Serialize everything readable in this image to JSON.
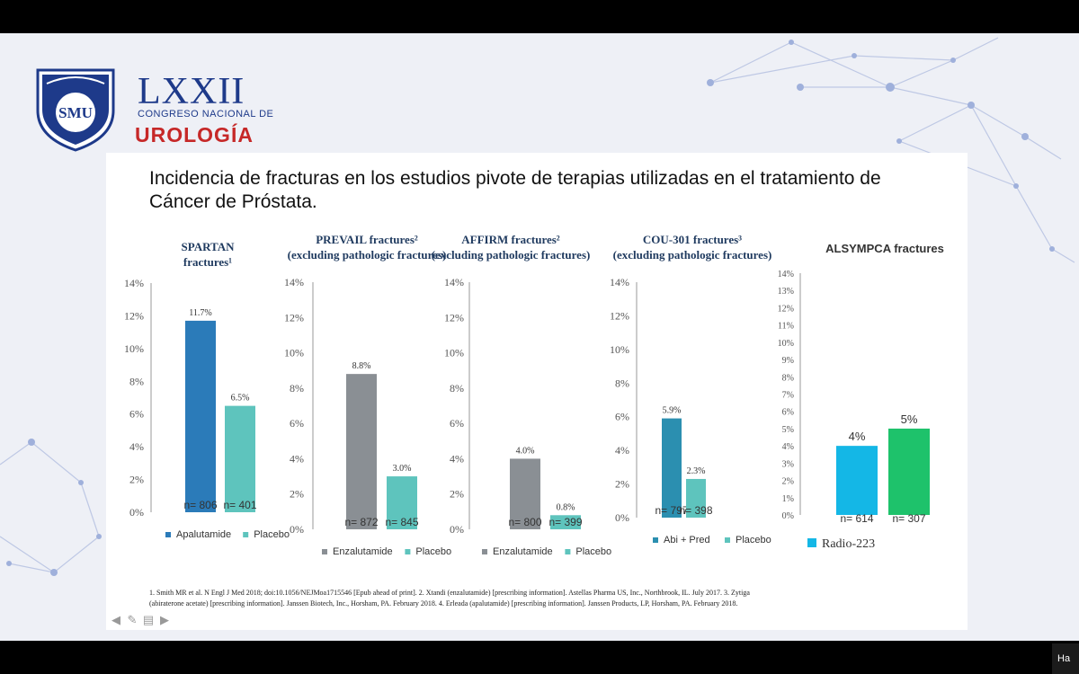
{
  "congress": {
    "logo_text": "SMU",
    "number": "LXXII",
    "subtitle": "CONGRESO NACIONAL DE",
    "specialty": "UROLOGÍA",
    "colors": {
      "blue": "#1e3a8a",
      "red": "#c62828"
    }
  },
  "slide": {
    "title": "Incidencia de fracturas en los estudios pivote de terapias utilizadas en el tratamiento de Cáncer de Próstata.",
    "footnote_line1": "1. Smith MR et al. N Engl J Med 2018; doi:10.1056/NEJMoa1715546 [Epub ahead of print]. 2. Xtandi (enzalutamide) [prescribing information]. Astellas Pharma US, Inc., Northbrook, IL. July 2017.      3. Zytiga",
    "footnote_line2": "(abiraterone acetate) [prescribing information]. Janssen Biotech, Inc., Horsham, PA. February 2018. 4. Erleada (apalutamide) [prescribing information]. Janssen Products, LP, Horsham, PA. February 2018."
  },
  "toolbar": {
    "icons": [
      "arrow-left-icon",
      "pen-icon",
      "notes-icon",
      "arrow-right-icon"
    ]
  },
  "corner_button_label": "Ha",
  "chart_data": [
    {
      "type": "bar",
      "title": "SPARTAN fractures¹",
      "categories": [
        "Apalutamide",
        "Placebo"
      ],
      "values": [
        11.7,
        6.5
      ],
      "value_labels": [
        "11.7%",
        "6.5%"
      ],
      "n_labels": [
        "n= 806",
        "n= 401"
      ],
      "ylim": [
        0,
        14
      ],
      "yticks": [
        "0%",
        "2%",
        "4%",
        "6%",
        "8%",
        "10%",
        "12%",
        "14%"
      ],
      "colors": [
        "#2b7bb9",
        "#5ec4bd"
      ],
      "legend": [
        "Apalutamide",
        "Placebo"
      ],
      "legend_position": "bottom"
    },
    {
      "type": "bar",
      "title": "PREVAIL fractures² (excluding pathologic fractures)",
      "categories": [
        "Enzalutamide",
        "Placebo"
      ],
      "values": [
        8.8,
        3.0
      ],
      "value_labels": [
        "8.8%",
        "3.0%"
      ],
      "n_labels": [
        "n= 872",
        "n= 845"
      ],
      "ylim": [
        0,
        14
      ],
      "yticks": [
        "0%",
        "2%",
        "4%",
        "6%",
        "8%",
        "10%",
        "12%",
        "14%"
      ],
      "colors": [
        "#8a8f94",
        "#5ec4bd"
      ],
      "legend": [
        "Enzalutamide",
        "Placebo"
      ],
      "legend_position": "bottom"
    },
    {
      "type": "bar",
      "title": "AFFIRM fractures² (excluding pathologic fractures)",
      "categories": [
        "Enzalutamide",
        "Placebo"
      ],
      "values": [
        4.0,
        0.8
      ],
      "value_labels": [
        "4.0%",
        "0.8%"
      ],
      "n_labels": [
        "n= 800",
        "n= 399"
      ],
      "ylim": [
        0,
        14
      ],
      "yticks": [
        "0%",
        "2%",
        "4%",
        "6%",
        "8%",
        "10%",
        "12%",
        "14%"
      ],
      "colors": [
        "#8a8f94",
        "#5ec4bd"
      ],
      "legend": [
        "Enzalutamide",
        "Placebo"
      ],
      "legend_position": "bottom"
    },
    {
      "type": "bar",
      "title": "COU-301 fractures³ (excluding pathologic fractures)",
      "categories": [
        "Abi + Pred",
        "Placebo"
      ],
      "values": [
        5.9,
        2.3
      ],
      "value_labels": [
        "5.9%",
        "2.3%"
      ],
      "n_labels": [
        "n= 797",
        "n= 398"
      ],
      "ylim": [
        0,
        14
      ],
      "yticks": [
        "0%",
        "2%",
        "4%",
        "6%",
        "8%",
        "10%",
        "12%",
        "14%"
      ],
      "colors": [
        "#2b8fb0",
        "#5ec4bd"
      ],
      "legend": [
        "Abi + Pred",
        "Placebo"
      ],
      "legend_position": "bottom"
    },
    {
      "type": "bar",
      "title": "ALSYMPCA fractures",
      "categories": [
        "",
        ""
      ],
      "values": [
        4,
        5
      ],
      "value_labels": [
        "4%",
        "5%"
      ],
      "n_labels": [
        "n= 614",
        "n= 307"
      ],
      "ylim": [
        0,
        14
      ],
      "yticks": [
        "0%",
        "1%",
        "2%",
        "3%",
        "4%",
        "5%",
        "6%",
        "7%",
        "8%",
        "9%",
        "10%",
        "11%",
        "12%",
        "13%",
        "14%"
      ],
      "colors": [
        "#14b7e6",
        "#1ec26b"
      ],
      "legend": [
        "Radio-223"
      ],
      "legend_position": "bottom"
    }
  ]
}
